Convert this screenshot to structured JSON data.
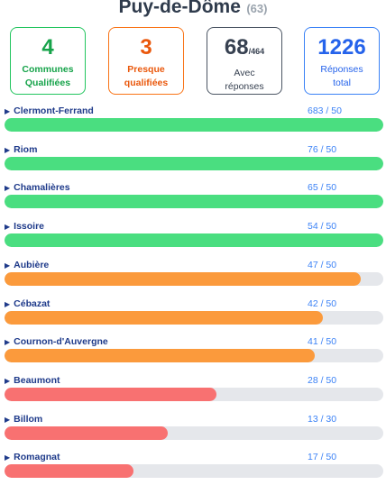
{
  "header": {
    "title": "Puy-de-Dôme",
    "count": "(63)"
  },
  "stats": {
    "qualified": {
      "value": "4",
      "label_line1": "Communes",
      "label_line2": "Qualifiées"
    },
    "almost": {
      "value": "3",
      "label_line1": "Presque",
      "label_line2": "qualifiées"
    },
    "with_responses": {
      "value": "68",
      "sub": "/464",
      "label_line1": "Avec",
      "label_line2": "réponses"
    },
    "total_responses": {
      "value": "1226",
      "label_line1": "Réponses",
      "label_line2": "total"
    }
  },
  "status_colors": {
    "qualified": "#4ade80",
    "almost": "#fb9a3c",
    "low": "#f87171"
  },
  "communes": [
    {
      "name": "Clermont-Ferrand",
      "score": "683 / 50",
      "fraction": 1.0,
      "status": "qualified"
    },
    {
      "name": "Riom",
      "score": "76 / 50",
      "fraction": 1.0,
      "status": "qualified"
    },
    {
      "name": "Chamalières",
      "score": "65 / 50",
      "fraction": 1.0,
      "status": "qualified"
    },
    {
      "name": "Issoire",
      "score": "54 / 50",
      "fraction": 1.0,
      "status": "qualified"
    },
    {
      "name": "Aubière",
      "score": "47 / 50",
      "fraction": 0.94,
      "status": "almost"
    },
    {
      "name": "Cébazat",
      "score": "42 / 50",
      "fraction": 0.84,
      "status": "almost"
    },
    {
      "name": "Cournon-d'Auvergne",
      "score": "41 / 50",
      "fraction": 0.82,
      "status": "almost"
    },
    {
      "name": "Beaumont",
      "score": "28 / 50",
      "fraction": 0.56,
      "status": "low"
    },
    {
      "name": "Billom",
      "score": "13 / 30",
      "fraction": 0.43,
      "status": "low"
    },
    {
      "name": "Romagnat",
      "score": "17 / 50",
      "fraction": 0.34,
      "status": "low"
    }
  ]
}
